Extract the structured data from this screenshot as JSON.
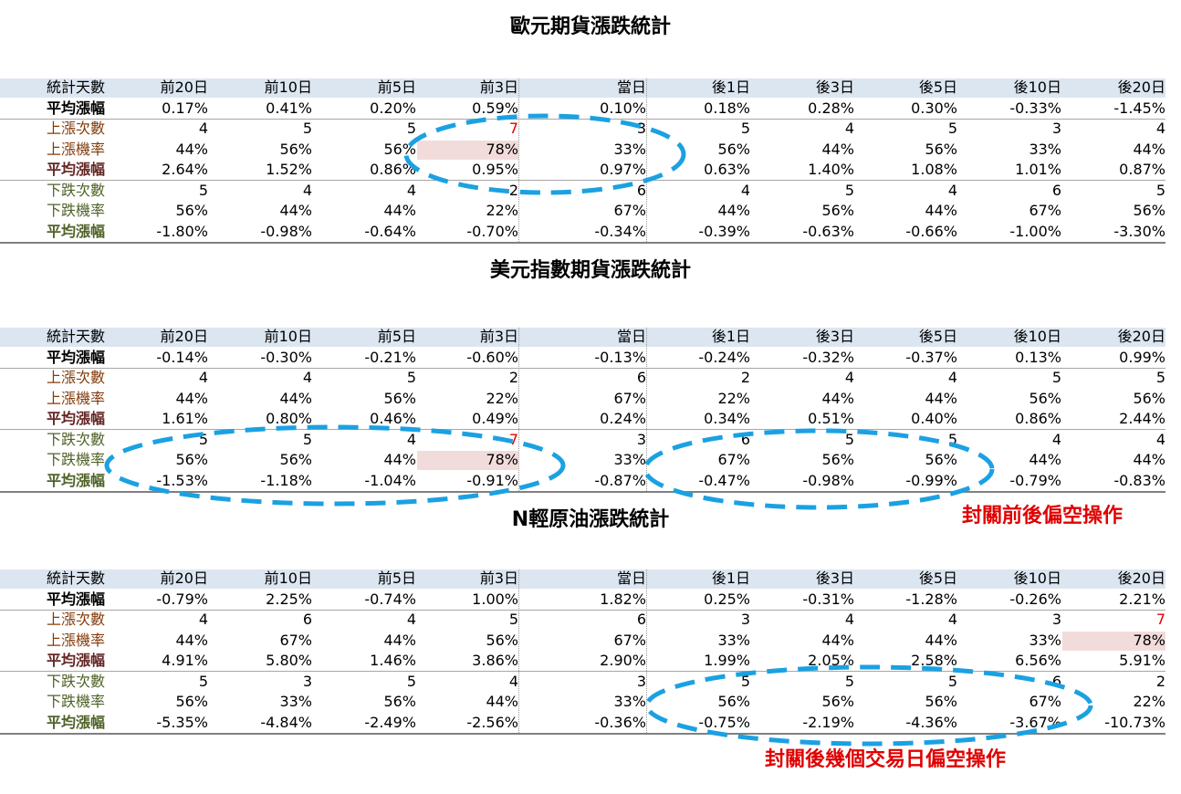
{
  "tables": [
    {
      "title": "歐元期貨漲跌統計",
      "header": [
        "統計天數",
        "前20日",
        "前10日",
        "前5日",
        "前3日",
        "當日",
        "後1日",
        "後3日",
        "後5日",
        "後10日",
        "後20日"
      ],
      "rows": [
        [
          "平均漲幅",
          "0.17%",
          "0.41%",
          "0.20%",
          "0.59%",
          "0.10%",
          "0.18%",
          "0.28%",
          "0.30%",
          "-0.33%",
          "-1.45%"
        ],
        [
          "上漲次數",
          "4",
          "5",
          "5",
          "7",
          "3",
          "5",
          "4",
          "5",
          "3",
          "4"
        ],
        [
          "上漲機率",
          "44%",
          "56%",
          "56%",
          "78%",
          "33%",
          "56%",
          "44%",
          "56%",
          "33%",
          "44%"
        ],
        [
          "平均漲幅",
          "2.64%",
          "1.52%",
          "0.86%",
          "0.95%",
          "0.97%",
          "0.63%",
          "1.40%",
          "1.08%",
          "1.01%",
          "0.87%"
        ],
        [
          "下跌次數",
          "5",
          "4",
          "4",
          "2",
          "6",
          "4",
          "5",
          "4",
          "6",
          "5"
        ],
        [
          "下跌機率",
          "56%",
          "44%",
          "44%",
          "22%",
          "67%",
          "44%",
          "56%",
          "44%",
          "67%",
          "56%"
        ],
        [
          "平均漲幅",
          "-1.80%",
          "-0.98%",
          "-0.64%",
          "-0.70%",
          "-0.34%",
          "-0.39%",
          "-0.63%",
          "-0.66%",
          "-1.00%",
          "-3.30%"
        ]
      ]
    },
    {
      "title": "美元指數期貨漲跌統計",
      "header": [
        "統計天數",
        "前20日",
        "前10日",
        "前5日",
        "前3日",
        "當日",
        "後1日",
        "後3日",
        "後5日",
        "後10日",
        "後20日"
      ],
      "rows": [
        [
          "平均漲幅",
          "-0.14%",
          "-0.30%",
          "-0.21%",
          "-0.60%",
          "-0.13%",
          "-0.24%",
          "-0.32%",
          "-0.37%",
          "0.13%",
          "0.99%"
        ],
        [
          "上漲次數",
          "4",
          "4",
          "5",
          "2",
          "6",
          "2",
          "4",
          "4",
          "5",
          "5"
        ],
        [
          "上漲機率",
          "44%",
          "44%",
          "56%",
          "22%",
          "67%",
          "22%",
          "44%",
          "44%",
          "56%",
          "56%"
        ],
        [
          "平均漲幅",
          "1.61%",
          "0.80%",
          "0.46%",
          "0.49%",
          "0.24%",
          "0.34%",
          "0.51%",
          "0.40%",
          "0.86%",
          "2.44%"
        ],
        [
          "下跌次數",
          "5",
          "5",
          "4",
          "7",
          "3",
          "6",
          "5",
          "5",
          "4",
          "4"
        ],
        [
          "下跌機率",
          "56%",
          "56%",
          "44%",
          "78%",
          "33%",
          "67%",
          "56%",
          "56%",
          "44%",
          "44%"
        ],
        [
          "平均漲幅",
          "-1.53%",
          "-1.18%",
          "-1.04%",
          "-0.91%",
          "-0.87%",
          "-0.47%",
          "-0.98%",
          "-0.99%",
          "-0.79%",
          "-0.83%"
        ]
      ]
    },
    {
      "title": "N輕原油漲跌統計",
      "header": [
        "統計天數",
        "前20日",
        "前10日",
        "前5日",
        "前3日",
        "當日",
        "後1日",
        "後3日",
        "後5日",
        "後10日",
        "後20日"
      ],
      "rows": [
        [
          "平均漲幅",
          "-0.79%",
          "2.25%",
          "-0.74%",
          "1.00%",
          "1.82%",
          "0.25%",
          "-0.31%",
          "-1.28%",
          "-0.26%",
          "2.21%"
        ],
        [
          "上漲次數",
          "4",
          "6",
          "4",
          "5",
          "6",
          "3",
          "4",
          "4",
          "3",
          "7"
        ],
        [
          "上漲機率",
          "44%",
          "67%",
          "44%",
          "56%",
          "67%",
          "33%",
          "44%",
          "44%",
          "33%",
          "78%"
        ],
        [
          "平均漲幅",
          "4.91%",
          "5.80%",
          "1.46%",
          "3.86%",
          "2.90%",
          "1.99%",
          "2.05%",
          "2.58%",
          "6.56%",
          "5.91%"
        ],
        [
          "下跌次數",
          "5",
          "3",
          "5",
          "4",
          "3",
          "5",
          "5",
          "5",
          "6",
          "2"
        ],
        [
          "下跌機率",
          "56%",
          "33%",
          "56%",
          "44%",
          "33%",
          "56%",
          "56%",
          "56%",
          "67%",
          "22%"
        ],
        [
          "平均漲幅",
          "-5.35%",
          "-4.84%",
          "-2.49%",
          "-2.56%",
          "-0.36%",
          "-0.75%",
          "-2.19%",
          "-4.36%",
          "-3.67%",
          "-10.73%"
        ]
      ]
    }
  ],
  "annotations": [
    "封關前後偏空操作",
    "封關後幾個交易日偏空操作"
  ]
}
